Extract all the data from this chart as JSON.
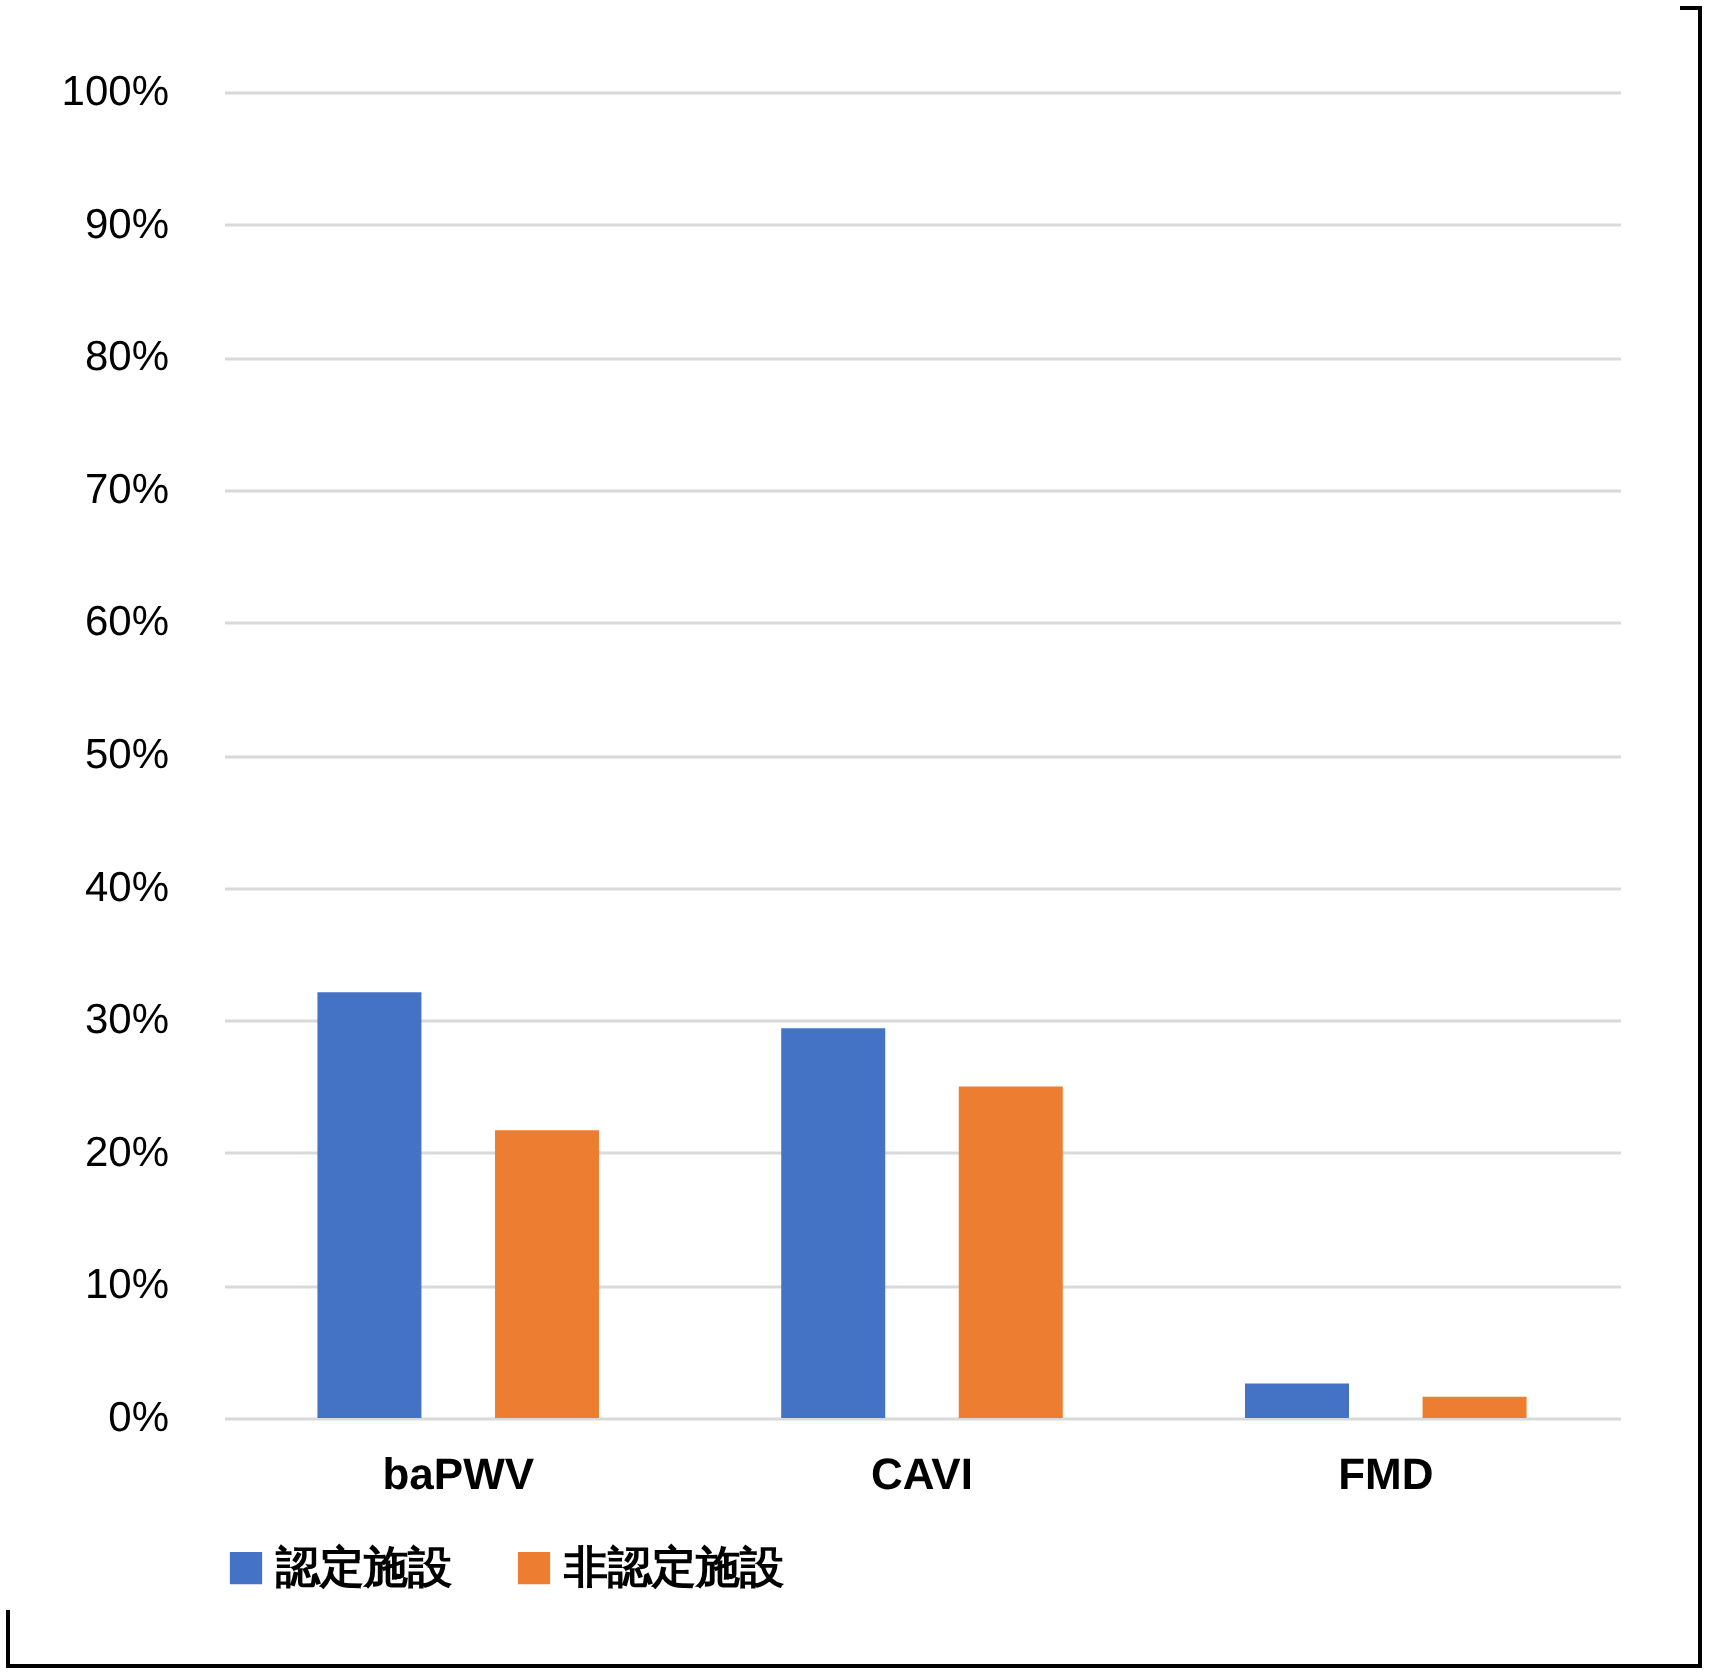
{
  "chart_data": {
    "type": "bar",
    "categories": [
      "baPWV",
      "CAVI",
      "FMD"
    ],
    "series": [
      {
        "name": "認定施設",
        "color": "#4472c4",
        "values": [
          32.1,
          29.4,
          2.6
        ]
      },
      {
        "name": "非認定施設",
        "color": "#ed7d31",
        "values": [
          21.7,
          25.0,
          1.6
        ]
      }
    ],
    "ylim": [
      0,
      100
    ],
    "yticks": [
      {
        "value": 0,
        "label": "0%"
      },
      {
        "value": 10,
        "label": "10%"
      },
      {
        "value": 20,
        "label": "20%"
      },
      {
        "value": 30,
        "label": "30%"
      },
      {
        "value": 40,
        "label": "40%"
      },
      {
        "value": 50,
        "label": "50%"
      },
      {
        "value": 60,
        "label": "60%"
      },
      {
        "value": 70,
        "label": "70%"
      },
      {
        "value": 80,
        "label": "80%"
      },
      {
        "value": 90,
        "label": "90%"
      },
      {
        "value": 100,
        "label": "100%"
      }
    ],
    "grid": "y",
    "legend": "bottom"
  }
}
